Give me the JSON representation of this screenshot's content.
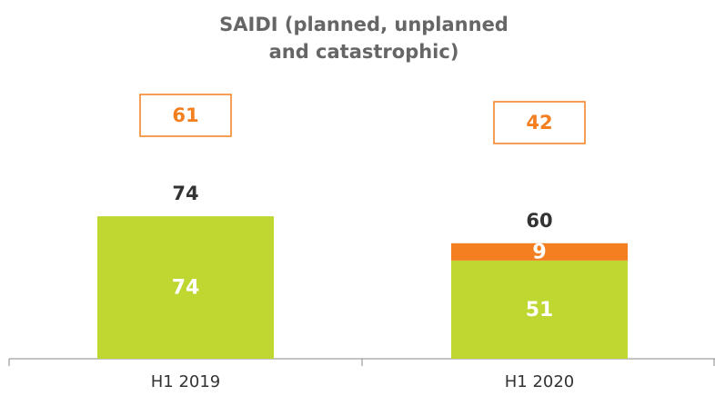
{
  "chart_data": {
    "type": "stacked_bar",
    "title": "SAIDI (planned, unplanned and catastrophic)",
    "categories": [
      "H1 2019",
      "H1 2020"
    ],
    "series": [
      {
        "color": "#bfd730",
        "values": [
          74,
          51
        ]
      },
      {
        "color": "#f47f20",
        "values": [
          null,
          9
        ]
      }
    ],
    "totals": [
      74,
      60
    ],
    "boxed_values": [
      61,
      42
    ],
    "boxed_color": "#f47f20",
    "ylim": [
      0,
      100
    ]
  }
}
